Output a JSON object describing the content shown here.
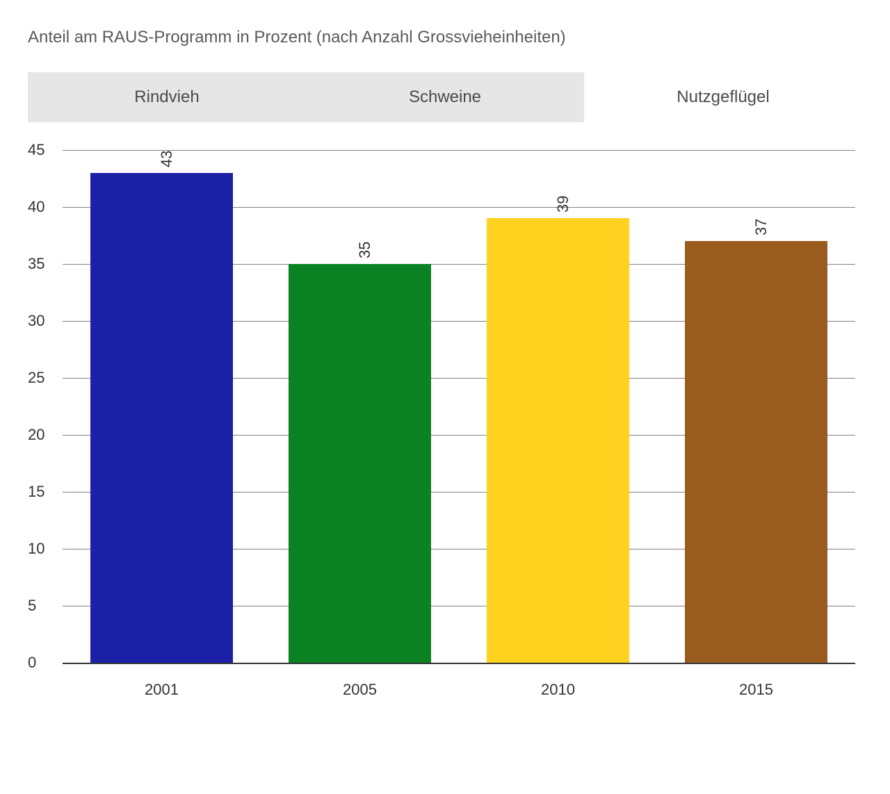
{
  "title": "Anteil am RAUS-Programm in Prozent (nach Anzahl Grossvieheinheiten)",
  "tabs": [
    {
      "label": "Rindvieh",
      "active": false
    },
    {
      "label": "Schweine",
      "active": false
    },
    {
      "label": "Nutzgeflügel",
      "active": true
    }
  ],
  "chart": {
    "type": "bar",
    "categories": [
      "2001",
      "2005",
      "2010",
      "2015"
    ],
    "values": [
      43,
      35,
      39,
      37
    ],
    "bar_colors": [
      "#1b20a6",
      "#0a8224",
      "#ffd21f",
      "#9a5c1e"
    ],
    "ylim": [
      0,
      45
    ],
    "ytick_step": 5,
    "yticks": [
      0,
      5,
      10,
      15,
      20,
      25,
      30,
      35,
      40,
      45
    ],
    "grid_color": "#808080",
    "axis_color": "#333333",
    "background_color": "#ffffff",
    "tab_bg": "#e6e6e6",
    "tab_active_bg": "#ffffff",
    "title_color": "#5a5a5a",
    "title_fontsize": 24,
    "tick_fontsize": 22,
    "bar_width_ratio": 0.72,
    "label_rotation_deg": -90
  }
}
